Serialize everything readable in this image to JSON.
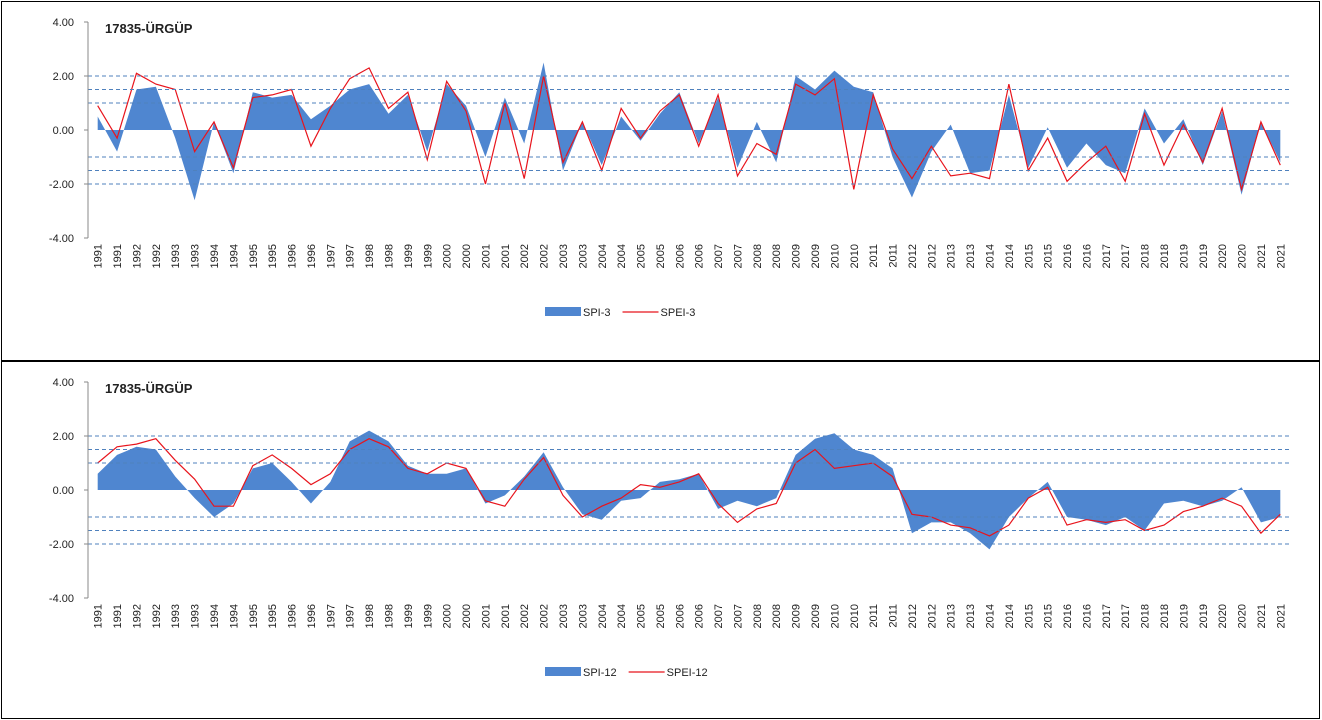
{
  "chart_data": [
    {
      "type": "area-line",
      "title": "17835-ÜRGÜP",
      "categories": [
        "1991",
        "1991",
        "1992",
        "1992",
        "1993",
        "1993",
        "1994",
        "1994",
        "1995",
        "1995",
        "1996",
        "1996",
        "1997",
        "1997",
        "1998",
        "1998",
        "1999",
        "1999",
        "2000",
        "2000",
        "2001",
        "2001",
        "2002",
        "2002",
        "2003",
        "2003",
        "2004",
        "2004",
        "2005",
        "2005",
        "2006",
        "2006",
        "2007",
        "2007",
        "2008",
        "2008",
        "2009",
        "2009",
        "2010",
        "2010",
        "2011",
        "2011",
        "2012",
        "2012",
        "2013",
        "2013",
        "2014",
        "2014",
        "2015",
        "2015",
        "2016",
        "2016",
        "2017",
        "2017",
        "2018",
        "2018",
        "2019",
        "2019",
        "2020",
        "2020",
        "2021",
        "2021"
      ],
      "series": [
        {
          "name": "SPI-3",
          "kind": "area",
          "color": "#4f86d0",
          "values": [
            0.5,
            -0.8,
            1.5,
            1.6,
            -0.3,
            -2.6,
            0.3,
            -1.6,
            1.4,
            1.2,
            1.3,
            0.4,
            0.9,
            1.5,
            1.7,
            0.6,
            1.3,
            -0.8,
            1.7,
            0.9,
            -1.0,
            1.2,
            -0.5,
            2.5,
            -1.5,
            0.3,
            -1.3,
            0.5,
            -0.4,
            0.6,
            1.4,
            -0.5,
            1.2,
            -1.4,
            0.3,
            -1.2,
            2.0,
            1.5,
            2.2,
            1.6,
            1.4,
            -1.0,
            -2.5,
            -0.8,
            0.2,
            -1.6,
            -1.5,
            1.3,
            -1.4,
            0.1,
            -1.4,
            -0.5,
            -1.3,
            -1.6,
            0.8,
            -0.5,
            0.4,
            -1.3,
            0.7,
            -2.4,
            0.3,
            -1.2
          ]
        },
        {
          "name": "SPEI-3",
          "kind": "line",
          "color": "#e8141c",
          "values": [
            0.9,
            -0.3,
            2.1,
            1.7,
            1.5,
            -0.8,
            0.3,
            -1.4,
            1.2,
            1.3,
            1.5,
            -0.6,
            0.8,
            1.9,
            2.3,
            0.8,
            1.4,
            -1.1,
            1.8,
            0.7,
            -2.0,
            1.0,
            -1.8,
            2.0,
            -1.2,
            0.3,
            -1.5,
            0.8,
            -0.3,
            0.7,
            1.3,
            -0.6,
            1.3,
            -1.7,
            -0.5,
            -0.9,
            1.7,
            1.3,
            1.9,
            -2.2,
            1.3,
            -0.7,
            -1.8,
            -0.6,
            -1.7,
            -1.6,
            -1.8,
            1.7,
            -1.5,
            -0.3,
            -1.9,
            -1.2,
            -0.6,
            -1.9,
            0.6,
            -1.3,
            0.2,
            -1.2,
            0.8,
            -2.2,
            0.3,
            -1.3
          ]
        }
      ],
      "ylim": [
        -4,
        4
      ],
      "yticks": [
        {
          "value": -4,
          "label": "-4.00"
        },
        {
          "value": -2,
          "label": "-2.00"
        },
        {
          "value": 0,
          "label": "0.00"
        },
        {
          "value": 2,
          "label": "2.00"
        },
        {
          "value": 4,
          "label": "4.00"
        }
      ],
      "reference_lines": [
        2,
        1.5,
        1,
        -1,
        -1.5,
        -2
      ]
    },
    {
      "type": "area-line",
      "title": "17835-ÜRGÜP",
      "categories": [
        "1991",
        "1991",
        "1992",
        "1992",
        "1993",
        "1993",
        "1994",
        "1994",
        "1995",
        "1995",
        "1996",
        "1996",
        "1997",
        "1997",
        "1998",
        "1998",
        "1999",
        "1999",
        "2000",
        "2000",
        "2001",
        "2001",
        "2002",
        "2002",
        "2003",
        "2003",
        "2004",
        "2004",
        "2005",
        "2005",
        "2006",
        "2006",
        "2007",
        "2007",
        "2008",
        "2008",
        "2009",
        "2009",
        "2010",
        "2010",
        "2011",
        "2011",
        "2012",
        "2012",
        "2013",
        "2013",
        "2014",
        "2014",
        "2015",
        "2015",
        "2016",
        "2016",
        "2017",
        "2017",
        "2018",
        "2018",
        "2019",
        "2019",
        "2020",
        "2020",
        "2021",
        "2021"
      ],
      "series": [
        {
          "name": "SPI-12",
          "kind": "area",
          "color": "#4f86d0",
          "values": [
            0.6,
            1.3,
            1.6,
            1.5,
            0.5,
            -0.3,
            -1.0,
            -0.5,
            0.8,
            1.0,
            0.3,
            -0.5,
            0.3,
            1.8,
            2.2,
            1.8,
            0.9,
            0.6,
            0.6,
            0.8,
            -0.5,
            -0.2,
            0.5,
            1.4,
            0.1,
            -0.9,
            -1.1,
            -0.4,
            -0.3,
            0.3,
            0.4,
            0.6,
            -0.7,
            -0.4,
            -0.6,
            -0.3,
            1.3,
            1.9,
            2.1,
            1.5,
            1.3,
            0.8,
            -1.6,
            -1.2,
            -1.2,
            -1.6,
            -2.2,
            -1.0,
            -0.3,
            0.3,
            -1.0,
            -1.1,
            -1.3,
            -1.0,
            -1.5,
            -0.5,
            -0.4,
            -0.6,
            -0.4,
            0.1,
            -1.2,
            -1.0
          ]
        },
        {
          "name": "SPEI-12",
          "kind": "line",
          "color": "#e8141c",
          "values": [
            1.0,
            1.6,
            1.7,
            1.9,
            1.1,
            0.4,
            -0.6,
            -0.6,
            0.9,
            1.3,
            0.8,
            0.2,
            0.6,
            1.5,
            1.9,
            1.6,
            0.8,
            0.6,
            1.0,
            0.8,
            -0.4,
            -0.6,
            0.4,
            1.2,
            -0.2,
            -1.0,
            -0.6,
            -0.3,
            0.2,
            0.1,
            0.3,
            0.6,
            -0.5,
            -1.2,
            -0.7,
            -0.5,
            1.0,
            1.5,
            0.8,
            0.9,
            1.0,
            0.5,
            -0.9,
            -1.0,
            -1.3,
            -1.4,
            -1.7,
            -1.3,
            -0.3,
            0.1,
            -1.3,
            -1.1,
            -1.2,
            -1.1,
            -1.5,
            -1.3,
            -0.8,
            -0.6,
            -0.3,
            -0.6,
            -1.6,
            -0.9
          ]
        }
      ],
      "ylim": [
        -4,
        4
      ],
      "yticks": [
        {
          "value": -4,
          "label": "-4.00"
        },
        {
          "value": -2,
          "label": "-2.00"
        },
        {
          "value": 0,
          "label": "0.00"
        },
        {
          "value": 2,
          "label": "2.00"
        },
        {
          "value": 4,
          "label": "4.00"
        }
      ],
      "reference_lines": [
        2,
        1.5,
        1,
        -1,
        -1.5,
        -2
      ]
    }
  ]
}
